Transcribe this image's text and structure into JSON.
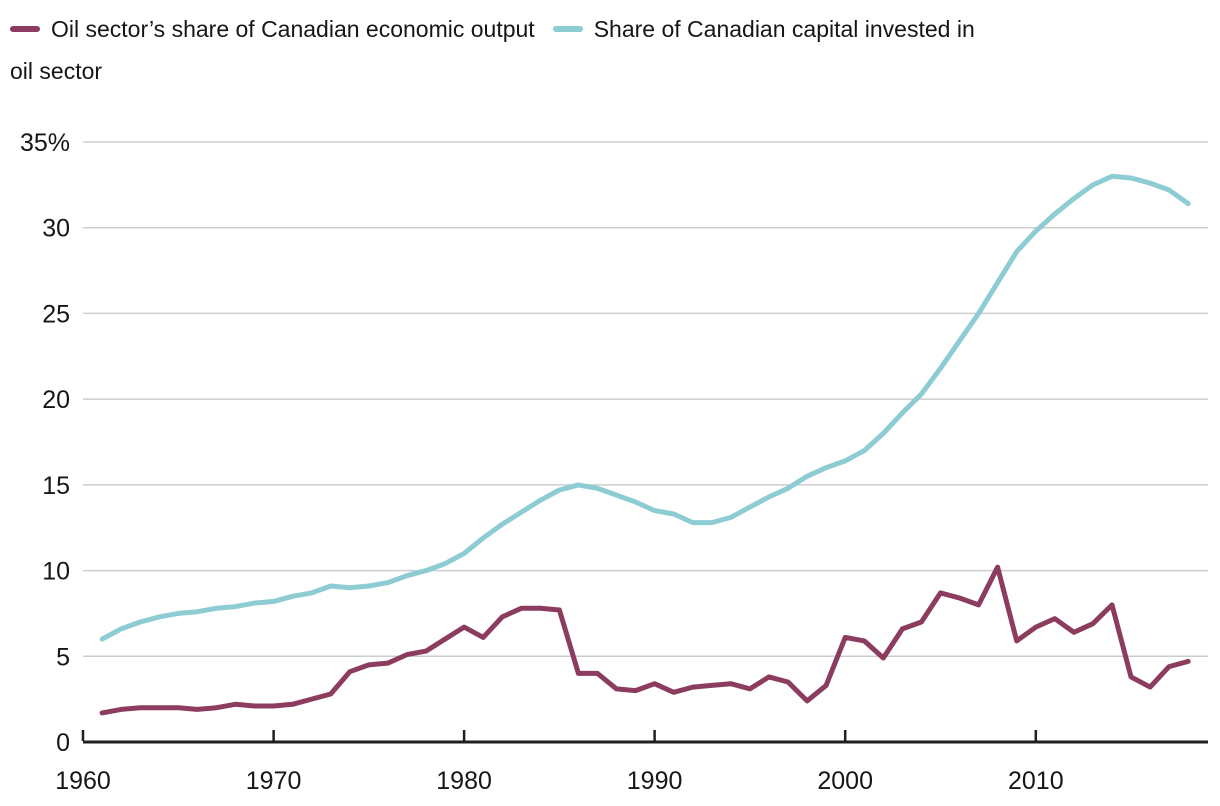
{
  "legend": {
    "items": [
      {
        "label": "Oil sector’s share of Canadian economic output",
        "color": "#8c3c5f"
      },
      {
        "label_lines": [
          "Share of Canadian capital invested in",
          "oil sector"
        ],
        "color": "#8eccd4"
      }
    ]
  },
  "chart_data": {
    "type": "line",
    "title": "",
    "xlabel": "",
    "ylabel": "",
    "grid": "horizontal-only",
    "legend_position": "top-left",
    "xlim": [
      1960,
      2019
    ],
    "ylim": [
      0,
      35
    ],
    "x_ticks": [
      1960,
      1970,
      1980,
      1990,
      2000,
      2010
    ],
    "x_tick_labels": [
      "1960",
      "1970",
      "1980",
      "1990",
      "2000",
      "2010"
    ],
    "y_ticks": [
      0,
      5,
      10,
      15,
      20,
      25,
      30,
      35
    ],
    "y_tick_labels": [
      "0",
      "5",
      "10",
      "15",
      "20",
      "25",
      "30",
      "35%"
    ],
    "colors": {
      "grid": "#cdcdcd",
      "axis": "#1f1f1f",
      "text": "#161616"
    },
    "x": [
      1961,
      1962,
      1963,
      1964,
      1965,
      1966,
      1967,
      1968,
      1969,
      1970,
      1971,
      1972,
      1973,
      1974,
      1975,
      1976,
      1977,
      1978,
      1979,
      1980,
      1981,
      1982,
      1983,
      1984,
      1985,
      1986,
      1987,
      1988,
      1989,
      1990,
      1991,
      1992,
      1993,
      1994,
      1995,
      1996,
      1997,
      1998,
      1999,
      2000,
      2001,
      2002,
      2003,
      2004,
      2005,
      2006,
      2007,
      2008,
      2009,
      2010,
      2011,
      2012,
      2013,
      2014,
      2015,
      2016,
      2017,
      2018
    ],
    "series": [
      {
        "id": "oil-output",
        "name": "Oil sector’s share of Canadian economic output",
        "color": "#8c3c5f",
        "values": [
          1.7,
          1.9,
          2.0,
          2.0,
          2.0,
          1.9,
          2.0,
          2.2,
          2.1,
          2.1,
          2.2,
          2.5,
          2.8,
          4.1,
          4.5,
          4.6,
          5.1,
          5.3,
          6.0,
          6.7,
          6.1,
          7.3,
          7.8,
          7.8,
          7.7,
          4.0,
          4.0,
          3.1,
          3.0,
          3.4,
          2.9,
          3.2,
          3.3,
          3.4,
          3.1,
          3.8,
          3.5,
          2.4,
          3.3,
          6.1,
          5.9,
          4.9,
          6.6,
          7.0,
          8.7,
          8.4,
          8.0,
          10.2,
          5.9,
          6.7,
          7.2,
          6.4,
          6.9,
          8.0,
          3.8,
          3.2,
          4.4,
          4.7
        ]
      },
      {
        "id": "capital-invested",
        "name": "Share of Canadian capital invested in oil sector",
        "color": "#8eccd4",
        "values": [
          6.0,
          6.6,
          7.0,
          7.3,
          7.5,
          7.6,
          7.8,
          7.9,
          8.1,
          8.2,
          8.5,
          8.7,
          9.1,
          9.0,
          9.1,
          9.3,
          9.7,
          10.0,
          10.4,
          11.0,
          11.9,
          12.7,
          13.4,
          14.1,
          14.7,
          15.0,
          14.8,
          14.4,
          14.0,
          13.5,
          13.3,
          12.8,
          12.8,
          13.1,
          13.7,
          14.3,
          14.8,
          15.5,
          16.0,
          16.4,
          17.0,
          18.0,
          19.2,
          20.3,
          21.8,
          23.4,
          25.0,
          26.8,
          28.6,
          29.8,
          30.8,
          31.7,
          32.5,
          33.0,
          32.9,
          32.6,
          32.2,
          31.4
        ]
      }
    ]
  }
}
